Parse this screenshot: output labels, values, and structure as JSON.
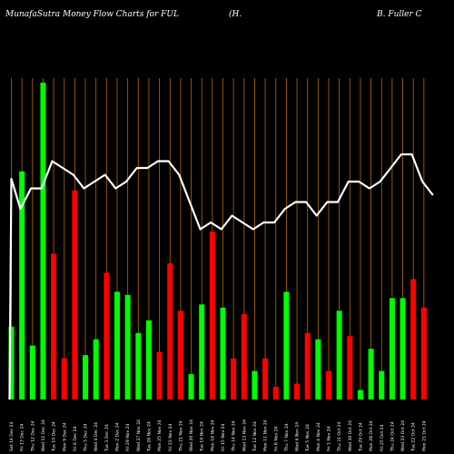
{
  "header": {
    "title_left": "MunafaSutra  Money Flow  Charts for FUL",
    "title_mid": "(H.",
    "title_right": "B. Fuller C"
  },
  "colors": {
    "background": "#000000",
    "up_bar": "#00ff00",
    "down_bar": "#ff0000",
    "grid_line": "#b8680a",
    "price_line": "#ffffff"
  },
  "chart_data": {
    "type": "bar",
    "title": "MunafaSutra  Money Flow  Charts for FUL (H. B. Fuller C",
    "grid": "vertical lines",
    "overlay": "price line",
    "ylim": [
      0,
      100
    ],
    "bars": [
      {
        "value": 23,
        "direction": "up"
      },
      {
        "value": 72,
        "direction": "up"
      },
      {
        "value": 17,
        "direction": "up"
      },
      {
        "value": 100,
        "direction": "up"
      },
      {
        "value": 46,
        "direction": "down"
      },
      {
        "value": 13,
        "direction": "down"
      },
      {
        "value": 66,
        "direction": "down"
      },
      {
        "value": 14,
        "direction": "up"
      },
      {
        "value": 19,
        "direction": "up"
      },
      {
        "value": 40,
        "direction": "down"
      },
      {
        "value": 34,
        "direction": "up"
      },
      {
        "value": 33,
        "direction": "up"
      },
      {
        "value": 21,
        "direction": "up"
      },
      {
        "value": 25,
        "direction": "up"
      },
      {
        "value": 15,
        "direction": "down"
      },
      {
        "value": 43,
        "direction": "down"
      },
      {
        "value": 28,
        "direction": "down"
      },
      {
        "value": 8,
        "direction": "up"
      },
      {
        "value": 30,
        "direction": "up"
      },
      {
        "value": 53,
        "direction": "down"
      },
      {
        "value": 29,
        "direction": "up"
      },
      {
        "value": 13,
        "direction": "down"
      },
      {
        "value": 27,
        "direction": "down"
      },
      {
        "value": 9,
        "direction": "up"
      },
      {
        "value": 13,
        "direction": "down"
      },
      {
        "value": 4,
        "direction": "down"
      },
      {
        "value": 34,
        "direction": "up"
      },
      {
        "value": 5,
        "direction": "down"
      },
      {
        "value": 21,
        "direction": "down"
      },
      {
        "value": 19,
        "direction": "up"
      },
      {
        "value": 9,
        "direction": "down"
      },
      {
        "value": 28,
        "direction": "up"
      },
      {
        "value": 20,
        "direction": "down"
      },
      {
        "value": 3,
        "direction": "up"
      },
      {
        "value": 16,
        "direction": "up"
      },
      {
        "value": 9,
        "direction": "up"
      },
      {
        "value": 32,
        "direction": "up"
      },
      {
        "value": 32,
        "direction": "up"
      },
      {
        "value": 38,
        "direction": "down"
      },
      {
        "value": 29,
        "direction": "down"
      }
    ],
    "price": [
      70,
      73,
      73,
      77,
      76,
      75,
      73,
      74,
      75,
      73,
      74,
      76,
      76,
      77,
      77,
      75,
      71,
      67,
      68,
      67,
      69,
      68,
      67,
      68,
      68,
      70,
      71,
      71,
      69,
      71,
      71,
      74,
      74,
      73,
      74,
      76,
      78,
      78,
      74,
      72
    ],
    "x_labels": [
      "Sat 14 Dec 24",
      "Fri 13 Dec 24",
      "Thu 12 Dec 24",
      "Wed 11 Dec 24",
      "Tue 10 Dec 24",
      "Mon 9 Dec 24",
      "Fri 6 Dec 24",
      "Thu 5 Dec 24",
      "Wed 4 Dec 24",
      "Tue 3 Dec 24",
      "Mon 2 Dec 24",
      "Fri 29 Nov 24",
      "Wed 27 Nov 24",
      "Tue 26 Nov 24",
      "Mon 25 Nov 24",
      "Fri 22 Nov 24",
      "Thu 21 Nov 24",
      "Wed 20 Nov 24",
      "Tue 19 Nov 24",
      "Mon 18 Nov 24",
      "Fri 15 Nov 24",
      "Thu 14 Nov 24",
      "Wed 13 Nov 24",
      "Tue 12 Nov 24",
      "Mon 11 Nov 24",
      "Fri 8 Nov 24",
      "Thu 7 Nov 24",
      "Wed 6 Nov 24",
      "Tue 5 Nov 24",
      "Mon 4 Nov 24",
      "Fri 1 Nov 24",
      "Thu 31 Oct 24",
      "Wed 30 Oct 24",
      "Tue 29 Oct 24",
      "Mon 28 Oct 24",
      "Fri 25 Oct 24",
      "Thu 24 Oct 24",
      "Wed 23 Oct 24",
      "Tue 22 Oct 24",
      "Mon 21 Oct 24"
    ]
  }
}
